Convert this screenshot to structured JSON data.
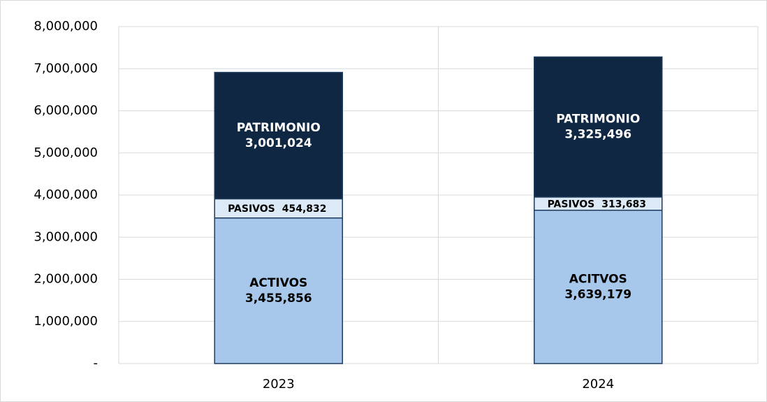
{
  "chart_data": {
    "type": "stacked_bar",
    "categories": [
      "2023",
      "2024"
    ],
    "series": [
      {
        "labels": [
          "ACTIVOS",
          "ACITVOS"
        ],
        "color": "#a7c8ea",
        "values": [
          3455856,
          3639179
        ],
        "value_labels": [
          "3,455,856",
          "3,639,179"
        ],
        "label_color": "#000000",
        "label_layout": "stacked"
      },
      {
        "labels": [
          "PASIVOS",
          "PASIVOS"
        ],
        "color": "#dce9f6",
        "values": [
          454832,
          313683
        ],
        "value_labels": [
          "454,832",
          "313,683"
        ],
        "label_color": "#000000",
        "label_layout": "inline"
      },
      {
        "labels": [
          "PATRIMONIO",
          "PATRIMONIO"
        ],
        "color": "#0f2742",
        "values": [
          3001024,
          3325496
        ],
        "value_labels": [
          "3,001,024",
          "3,325,496"
        ],
        "label_color": "#ffffff",
        "label_layout": "stacked"
      }
    ],
    "ylim": [
      0,
      8000000
    ],
    "yticks": [
      {
        "value": 0,
        "label": "-"
      },
      {
        "value": 1000000,
        "label": "1,000,000"
      },
      {
        "value": 2000000,
        "label": "2,000,000"
      },
      {
        "value": 3000000,
        "label": "3,000,000"
      },
      {
        "value": 4000000,
        "label": "4,000,000"
      },
      {
        "value": 5000000,
        "label": "5,000,000"
      },
      {
        "value": 6000000,
        "label": "6,000,000"
      },
      {
        "value": 7000000,
        "label": "7,000,000"
      },
      {
        "value": 8000000,
        "label": "8,000,000"
      }
    ],
    "grid": true
  }
}
